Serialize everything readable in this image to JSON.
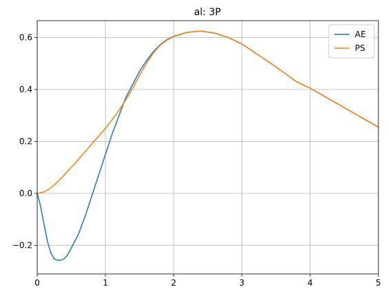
{
  "chart_data": {
    "type": "line",
    "title": "al: 3P",
    "xlabel": "",
    "ylabel": "",
    "xlim": [
      0,
      5
    ],
    "ylim": [
      -0.31,
      0.665
    ],
    "xticks": [
      0,
      1,
      2,
      3,
      4,
      5
    ],
    "xtick_labels": [
      "0",
      "1",
      "2",
      "3",
      "4",
      "5"
    ],
    "yticks": [
      -0.2,
      0.0,
      0.2,
      0.4,
      0.6
    ],
    "ytick_labels": [
      "−0.2",
      "0.0",
      "0.2",
      "0.4",
      "0.6"
    ],
    "grid": true,
    "legend_position": "top-right",
    "series": [
      {
        "name": "AE",
        "color": "#1f77b4",
        "x": [
          0,
          0.05,
          0.1,
          0.15,
          0.2,
          0.25,
          0.3,
          0.35,
          0.4,
          0.45,
          0.5,
          0.6,
          0.7,
          0.8,
          0.9,
          1.0,
          1.1,
          1.2,
          1.3,
          1.4,
          1.5,
          1.6,
          1.7,
          1.8,
          1.9,
          2.0,
          2.2,
          2.4,
          2.6,
          2.8,
          3.0,
          3.2,
          3.4,
          3.6,
          3.8,
          4.0,
          4.2,
          4.4,
          4.6,
          4.8,
          5.0
        ],
        "y": [
          0.0,
          -0.05,
          -0.12,
          -0.185,
          -0.23,
          -0.252,
          -0.258,
          -0.257,
          -0.25,
          -0.235,
          -0.21,
          -0.16,
          -0.09,
          -0.01,
          0.07,
          0.15,
          0.23,
          0.3,
          0.37,
          0.42,
          0.47,
          0.51,
          0.545,
          0.572,
          0.592,
          0.605,
          0.62,
          0.625,
          0.617,
          0.6,
          0.575,
          0.54,
          0.505,
          0.468,
          0.43,
          0.405,
          0.375,
          0.345,
          0.315,
          0.285,
          0.255
        ]
      },
      {
        "name": "PS",
        "color": "#ff7f0e",
        "x": [
          0,
          0.05,
          0.1,
          0.15,
          0.2,
          0.25,
          0.3,
          0.35,
          0.4,
          0.45,
          0.5,
          0.6,
          0.7,
          0.8,
          0.9,
          1.0,
          1.1,
          1.2,
          1.3,
          1.4,
          1.5,
          1.6,
          1.7,
          1.8,
          1.9,
          2.0,
          2.2,
          2.4,
          2.6,
          2.8,
          3.0,
          3.2,
          3.4,
          3.6,
          3.8,
          4.0,
          4.2,
          4.4,
          4.6,
          4.8,
          5.0
        ],
        "y": [
          0.0,
          0.002,
          0.006,
          0.013,
          0.022,
          0.033,
          0.045,
          0.058,
          0.072,
          0.087,
          0.1,
          0.13,
          0.16,
          0.19,
          0.22,
          0.25,
          0.285,
          0.32,
          0.36,
          0.405,
          0.455,
          0.5,
          0.54,
          0.57,
          0.59,
          0.604,
          0.62,
          0.625,
          0.617,
          0.6,
          0.575,
          0.54,
          0.505,
          0.468,
          0.43,
          0.405,
          0.375,
          0.345,
          0.315,
          0.285,
          0.255
        ]
      }
    ]
  }
}
